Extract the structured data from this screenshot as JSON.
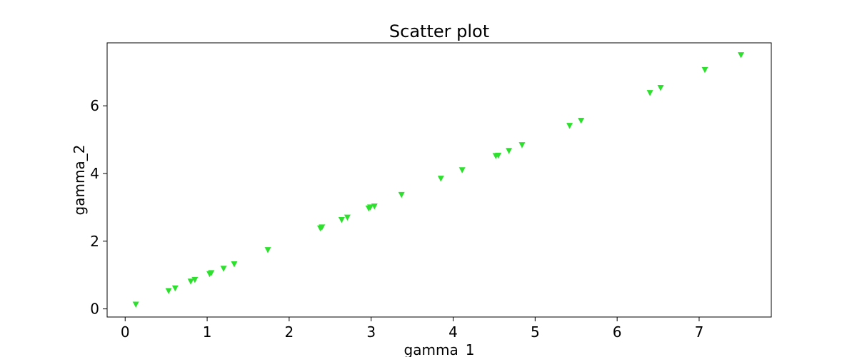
{
  "chart_data": {
    "type": "scatter",
    "title": "Scatter plot",
    "xlabel": "gamma_1",
    "ylabel": "gamma_2",
    "xlim": [
      -0.22,
      7.88
    ],
    "ylim": [
      -0.24,
      7.86
    ],
    "xticks": [
      0,
      1,
      2,
      3,
      4,
      5,
      6,
      7
    ],
    "yticks": [
      0,
      2,
      4,
      6
    ],
    "grid": false,
    "marker": "triangle-down",
    "color": "#2ee02e",
    "points": [
      {
        "x": 0.13,
        "y": 0.13
      },
      {
        "x": 0.53,
        "y": 0.53
      },
      {
        "x": 0.61,
        "y": 0.61
      },
      {
        "x": 0.8,
        "y": 0.81
      },
      {
        "x": 0.85,
        "y": 0.86
      },
      {
        "x": 1.03,
        "y": 1.03
      },
      {
        "x": 1.05,
        "y": 1.06
      },
      {
        "x": 1.2,
        "y": 1.19
      },
      {
        "x": 1.33,
        "y": 1.32
      },
      {
        "x": 1.74,
        "y": 1.74
      },
      {
        "x": 2.38,
        "y": 2.38
      },
      {
        "x": 2.4,
        "y": 2.41
      },
      {
        "x": 2.64,
        "y": 2.63
      },
      {
        "x": 2.71,
        "y": 2.7
      },
      {
        "x": 2.97,
        "y": 2.97
      },
      {
        "x": 2.99,
        "y": 3.0
      },
      {
        "x": 3.04,
        "y": 3.03
      },
      {
        "x": 3.37,
        "y": 3.37
      },
      {
        "x": 3.85,
        "y": 3.85
      },
      {
        "x": 4.11,
        "y": 4.1
      },
      {
        "x": 4.52,
        "y": 4.52
      },
      {
        "x": 4.55,
        "y": 4.53
      },
      {
        "x": 4.68,
        "y": 4.67
      },
      {
        "x": 4.84,
        "y": 4.84
      },
      {
        "x": 5.42,
        "y": 5.41
      },
      {
        "x": 5.56,
        "y": 5.56
      },
      {
        "x": 6.4,
        "y": 6.38
      },
      {
        "x": 6.53,
        "y": 6.53
      },
      {
        "x": 7.07,
        "y": 7.06
      },
      {
        "x": 7.51,
        "y": 7.5
      }
    ]
  }
}
